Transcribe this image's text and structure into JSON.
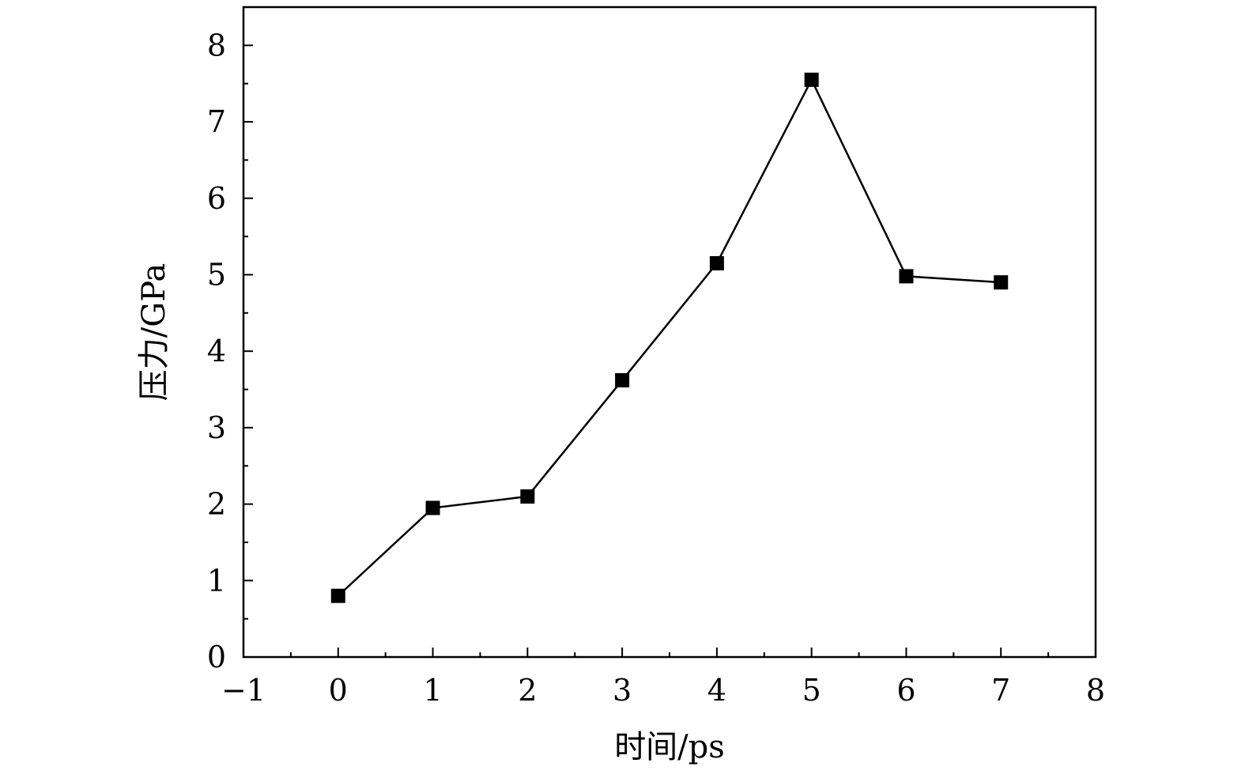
{
  "chart_data": {
    "type": "line",
    "title": "",
    "xlabel": "时间/ps",
    "ylabel": "压力/GPa",
    "xlim": [
      -1,
      8
    ],
    "ylim": [
      0,
      8.5
    ],
    "xticks": [
      -1,
      0,
      1,
      2,
      3,
      4,
      5,
      6,
      7,
      8
    ],
    "xtick_labels": [
      "−1",
      "0",
      "1",
      "2",
      "3",
      "4",
      "5",
      "6",
      "7",
      "8"
    ],
    "yticks": [
      0,
      1,
      2,
      3,
      4,
      5,
      6,
      7,
      8
    ],
    "ytick_labels": [
      "0",
      "1",
      "2",
      "3",
      "4",
      "5",
      "6",
      "7",
      "8"
    ],
    "grid": false,
    "legend": "none",
    "series": [
      {
        "marker": "filled-square",
        "color": "#000000",
        "x": [
          0,
          1,
          2,
          3,
          4,
          5,
          6,
          7
        ],
        "y": [
          0.8,
          1.95,
          2.1,
          3.62,
          5.15,
          7.55,
          4.98,
          4.9
        ]
      }
    ]
  }
}
